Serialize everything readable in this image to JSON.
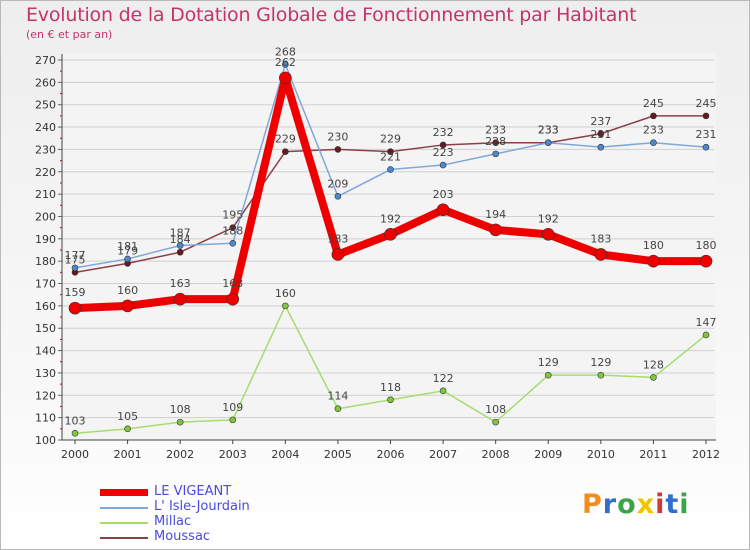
{
  "title": "Evolution de la Dotation Globale de Fonctionnement par Habitant",
  "subtitle": "(en € et par an)",
  "logo": {
    "letters": [
      "P",
      "r",
      "o",
      "x",
      "i",
      "t",
      "i"
    ],
    "colors": [
      "#f28c1e",
      "#2f6fd0",
      "#3aa44a",
      "#f0c400",
      "#d23a3a",
      "#2f6fd0",
      "#3aa44a"
    ]
  },
  "chart_data": {
    "type": "line",
    "title": "Evolution de la Dotation Globale de Fonctionnement par Habitant",
    "xlabel": "",
    "ylabel": "",
    "ylim": [
      100,
      270
    ],
    "yticks": [
      100,
      110,
      120,
      130,
      140,
      150,
      160,
      170,
      180,
      190,
      200,
      210,
      220,
      230,
      240,
      250,
      260,
      270
    ],
    "x": [
      "2000",
      "2001",
      "2002",
      "2003",
      "2004",
      "2005",
      "2006",
      "2007",
      "2008",
      "2009",
      "2010",
      "2011",
      "2012"
    ],
    "series": [
      {
        "name": "Millac",
        "color": "#a6dc6e",
        "marker": "#7ec83c",
        "width": 1.5,
        "radius": 3,
        "values": [
          103,
          105,
          108,
          109,
          160,
          114,
          118,
          122,
          108,
          129,
          129,
          128,
          147
        ]
      },
      {
        "name": "Moussac",
        "color": "#8b4048",
        "marker": "#6a1820",
        "width": 1.5,
        "radius": 3,
        "values": [
          175,
          179,
          184,
          195,
          229,
          230,
          229,
          232,
          233,
          233,
          237,
          245,
          245
        ]
      },
      {
        "name": "L' Isle-Jourdain",
        "color": "#7ea8d8",
        "marker": "#4a88d0",
        "width": 1.5,
        "radius": 3,
        "values": [
          177,
          181,
          187,
          188,
          268,
          209,
          221,
          223,
          228,
          233,
          231,
          233,
          231
        ]
      },
      {
        "name": "LE VIGEANT",
        "color": "#ee0000",
        "marker": "#ee0000",
        "width": 8,
        "radius": 6,
        "values": [
          159,
          160,
          163,
          163,
          262,
          183,
          192,
          203,
          194,
          192,
          183,
          180,
          180
        ]
      }
    ],
    "labels": [
      {
        "series": "Millac",
        "values": [
          "103",
          "105",
          "108",
          "109",
          "160",
          "114",
          "118",
          "122",
          "108",
          "129",
          "129",
          "128",
          "147"
        ]
      },
      {
        "series": "Moussac",
        "values": [
          "175",
          "179",
          "184",
          "195",
          "229",
          "230",
          "229",
          "232",
          "233",
          "233",
          "237",
          "245",
          "245"
        ]
      },
      {
        "series": "L' Isle-Jourdain",
        "values": [
          "177",
          "181",
          "187",
          "188",
          "268",
          "209",
          "221",
          "223",
          "228",
          "233",
          "231",
          "233",
          "231"
        ]
      },
      {
        "series": "LE VIGEANT",
        "values": [
          "159",
          "160",
          "163",
          "163",
          "262",
          "183",
          "192",
          "203",
          "194",
          "192",
          "183",
          "180",
          "180"
        ]
      }
    ],
    "legend": [
      "LE VIGEANT",
      "L' Isle-Jourdain",
      "Millac",
      "Moussac"
    ]
  }
}
